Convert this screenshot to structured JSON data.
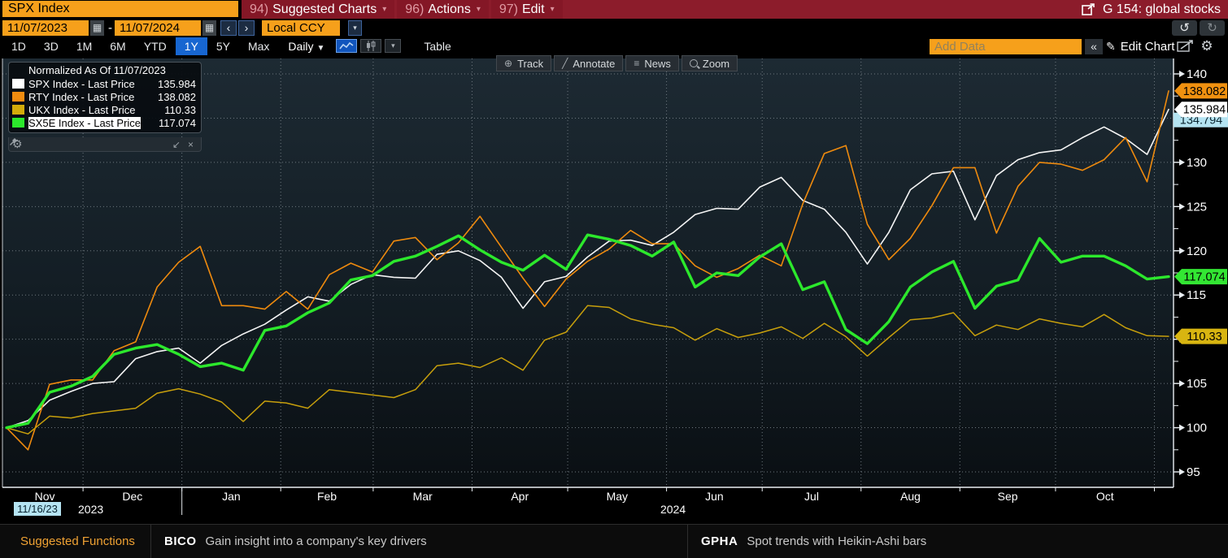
{
  "titlebar": {
    "ticker_field": "SPX Index",
    "menus": [
      {
        "num": "94)",
        "label": "Suggested Charts"
      },
      {
        "num": "96)",
        "label": "Actions"
      },
      {
        "num": "97)",
        "label": "Edit"
      }
    ],
    "workspace_title": "G 154: global stocks"
  },
  "controls": {
    "date_from": "11/07/2023",
    "date_separator": "-",
    "date_to": "11/07/2024",
    "prev_arrow": "‹",
    "next_arrow": "›",
    "currency": "Local CCY",
    "range_tabs": [
      "1D",
      "3D",
      "1M",
      "6M",
      "YTD",
      "1Y",
      "5Y",
      "Max"
    ],
    "selected_range": "1Y",
    "period_dropdown": "Daily",
    "table_button": "Table",
    "add_data_placeholder": "Add Data",
    "collapse_button": "«",
    "edit_chart_button": "Edit Chart",
    "undo_icon": "↺",
    "redo_icon": "↻"
  },
  "chart_toolbar": {
    "track": "Track",
    "annotate": "Annotate",
    "news": "News",
    "zoom": "Zoom"
  },
  "legend": {
    "title": "Normalized As Of 11/07/2023",
    "items": [
      {
        "label": "SPX Index - Last Price",
        "value": "135.984",
        "color": "#ffffff",
        "highlighted": false
      },
      {
        "label": "RTY Index - Last Price",
        "value": "138.082",
        "color": "#f18c10",
        "highlighted": false
      },
      {
        "label": "UKX Index - Last Price",
        "value": "110.33",
        "color": "#d4ac0a",
        "highlighted": false
      },
      {
        "label": "SX5E Index - Last Price",
        "value": "117.074",
        "color": "#2ce82c",
        "highlighted": true
      }
    ]
  },
  "axis_tags": [
    {
      "label": "134.794",
      "value": 134.794,
      "bg": "#b5e4f2",
      "fg": "#0a2530",
      "shape": "rect"
    },
    {
      "label": "138.082",
      "value": 138.082,
      "bg": "#f09110",
      "fg": "#000000",
      "shape": "pointed"
    },
    {
      "label": "135.984",
      "value": 135.984,
      "bg": "#ffffff",
      "fg": "#000000",
      "shape": "pointed"
    },
    {
      "label": "117.074",
      "value": 117.074,
      "bg": "#33e633",
      "fg": "#000000",
      "shape": "pointed"
    },
    {
      "label": "110.33",
      "value": 110.33,
      "bg": "#d8b511",
      "fg": "#000000",
      "shape": "pointed"
    }
  ],
  "crosshair": {
    "date_label": "11/16/23"
  },
  "x_axis": {
    "months": [
      "Nov",
      "Dec",
      "Jan",
      "Feb",
      "Mar",
      "Apr",
      "May",
      "Jun",
      "Jul",
      "Aug",
      "Sep",
      "Oct"
    ],
    "year_left": "2023",
    "year_right": "2024"
  },
  "chart_data": {
    "type": "line",
    "title": "Normalized As Of 11/07/2023",
    "x_range": [
      "11/07/2023",
      "11/07/2024"
    ],
    "ylim": [
      93,
      141.5
    ],
    "y_ticks": [
      95,
      100,
      105,
      110,
      115,
      120,
      125,
      130,
      135,
      140
    ],
    "y_tick_labels_visible": [
      95,
      100,
      105,
      115,
      120,
      125,
      130,
      140
    ],
    "grid": true,
    "legend_position": "top-left",
    "series": [
      {
        "name": "SPX Index - Last Price",
        "color": "#f4f4f4",
        "width": 1.6,
        "last": 135.984,
        "values": [
          100,
          100.8,
          103.1,
          104.1,
          105.0,
          105.2,
          107.8,
          108.6,
          109.0,
          107.3,
          109.3,
          110.6,
          111.7,
          113.3,
          114.8,
          114.3,
          116.2,
          117.3,
          117.0,
          116.9,
          119.6,
          120.0,
          118.9,
          117.0,
          113.5,
          116.5,
          117.1,
          119.3,
          121.1,
          121.2,
          120.6,
          122.1,
          124.1,
          124.8,
          124.7,
          127.2,
          128.3,
          125.7,
          124.7,
          122.1,
          118.5,
          122.1,
          126.9,
          128.7,
          129.0,
          123.5,
          128.5,
          130.3,
          131.1,
          131.4,
          132.8,
          134.0,
          132.7,
          130.9,
          135.984
        ]
      },
      {
        "name": "RTY Index - Last Price",
        "color": "#ee8a0e",
        "width": 1.6,
        "last": 138.082,
        "values": [
          100,
          97.5,
          104.9,
          105.4,
          105.4,
          108.7,
          109.7,
          115.9,
          118.7,
          120.5,
          113.8,
          113.8,
          113.4,
          115.4,
          113.4,
          117.3,
          118.6,
          117.6,
          121.1,
          121.5,
          119.0,
          120.9,
          123.9,
          120.4,
          116.9,
          113.7,
          116.8,
          118.8,
          120.2,
          122.3,
          120.8,
          120.8,
          118.3,
          117.0,
          118.0,
          119.5,
          118.3,
          125.3,
          131.0,
          131.9,
          123.0,
          119.0,
          121.4,
          125.1,
          129.4,
          129.4,
          122.0,
          127.3,
          130.0,
          129.8,
          129.1,
          130.3,
          132.8,
          127.8,
          138.082
        ]
      },
      {
        "name": "UKX Index - Last Price",
        "color": "#c79f0c",
        "width": 1.5,
        "last": 110.33,
        "values": [
          100,
          99.3,
          101.3,
          101.1,
          101.6,
          101.9,
          102.2,
          103.9,
          104.4,
          103.8,
          102.9,
          100.7,
          103.0,
          102.8,
          102.2,
          104.3,
          104.0,
          103.7,
          103.4,
          104.3,
          107.0,
          107.3,
          106.8,
          107.9,
          106.5,
          109.9,
          110.8,
          113.8,
          113.6,
          112.3,
          111.7,
          111.3,
          109.9,
          111.2,
          110.2,
          110.7,
          111.4,
          110.1,
          111.8,
          110.3,
          108.1,
          110.2,
          112.2,
          112.4,
          113.0,
          110.4,
          111.6,
          111.1,
          112.3,
          111.8,
          111.4,
          112.8,
          111.3,
          110.4,
          110.33
        ]
      },
      {
        "name": "SX5E Index - Last Price",
        "color": "#2ce82c",
        "width": 3.4,
        "last": 117.074,
        "values": [
          100,
          100.5,
          104.0,
          104.7,
          105.8,
          108.3,
          109.0,
          109.4,
          108.3,
          106.9,
          107.3,
          106.5,
          111.0,
          111.5,
          113.0,
          114.1,
          116.7,
          117.2,
          118.8,
          119.4,
          120.5,
          121.7,
          120.1,
          118.7,
          117.8,
          119.5,
          117.9,
          121.8,
          121.3,
          120.6,
          119.4,
          121.0,
          115.9,
          117.5,
          117.2,
          119.3,
          120.8,
          115.6,
          116.5,
          111.1,
          109.5,
          112.0,
          115.9,
          117.6,
          118.8,
          113.5,
          116.0,
          116.7,
          121.4,
          118.7,
          119.4,
          119.4,
          118.3,
          116.8,
          117.074
        ]
      }
    ]
  },
  "footer": {
    "section_label": "Suggested Functions",
    "items": [
      {
        "code": "BICO",
        "desc": "Gain insight into a company's key drivers"
      },
      {
        "code": "GPHA",
        "desc": "Spot trends with Heikin-Ashi bars"
      }
    ]
  }
}
